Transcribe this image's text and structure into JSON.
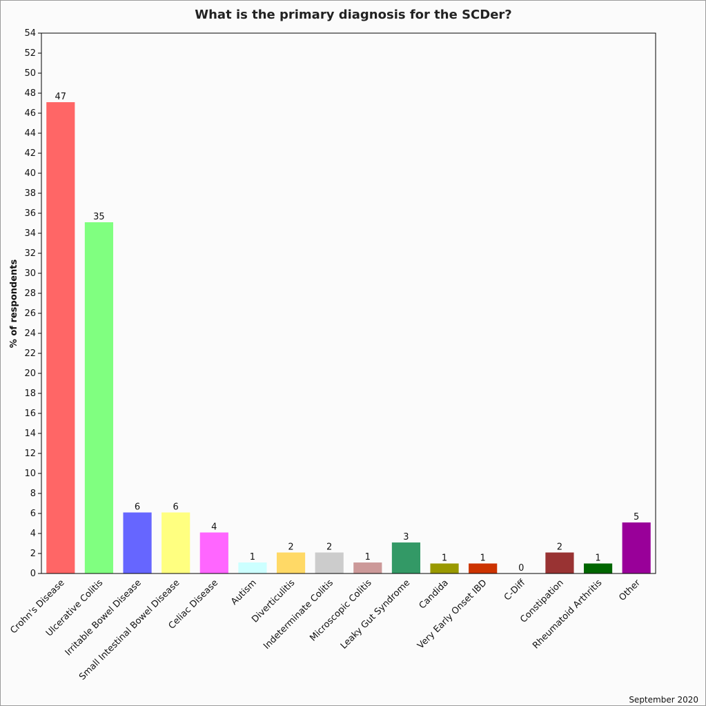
{
  "chart_data": {
    "type": "bar",
    "title": "What is the primary diagnosis for the SCDer?",
    "xlabel": "",
    "ylabel": "% of respondents",
    "ylim": [
      0,
      54
    ],
    "ytick_step": 2,
    "grid": false,
    "legend": "none",
    "categories": [
      "Crohn's Disease",
      "Ulcerative Colitis",
      "Irritable Bowel Disease",
      "Small Intestinal Bowel Disease",
      "Celiac Disease",
      "Autism",
      "Diverticulitis",
      "Indeterminate Colitis",
      "Microscopic Colitis",
      "Leaky Gut Syndrome",
      "Candida",
      "Very Early Onset IBD",
      "C-Diff",
      "Constipation",
      "Rheumatoid Arthritis",
      "Other"
    ],
    "values": [
      47.1,
      35.1,
      6.1,
      6.1,
      4.1,
      1.1,
      2.1,
      2.1,
      1.1,
      3.1,
      1.0,
      1.0,
      0,
      2.1,
      1.0,
      5.1
    ],
    "data_labels": [
      "47",
      "35",
      "6",
      "6",
      "4",
      "1",
      "2",
      "2",
      "1",
      "3",
      "1",
      "1",
      "0",
      "2",
      "1",
      "5"
    ],
    "colors": [
      "#ff6666",
      "#80ff80",
      "#6666ff",
      "#ffff80",
      "#ff66ff",
      "#ccffff",
      "#ffd966",
      "#cccccc",
      "#cc9999",
      "#339966",
      "#999900",
      "#cc3300",
      "#ffffff",
      "#993333",
      "#006600",
      "#990099"
    ]
  },
  "footer": "September 2020"
}
